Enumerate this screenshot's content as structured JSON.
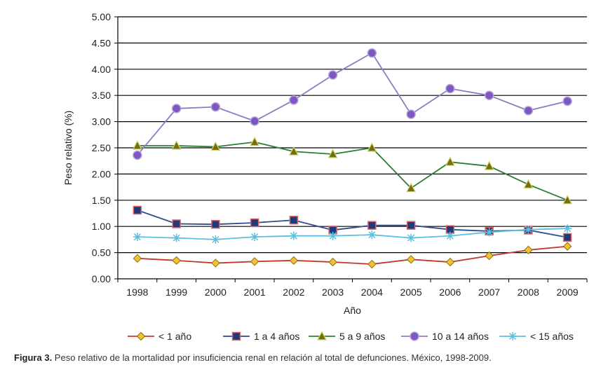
{
  "chart_data": {
    "type": "line",
    "title": "",
    "xlabel": "Año",
    "ylabel": "Peso relativo (%)",
    "ylim": [
      0,
      5
    ],
    "ytick_labels": [
      "0.00",
      "0.50",
      "1.00",
      "1.50",
      "2.00",
      "2.50",
      "3.00",
      "3.50",
      "4.00",
      "4.50",
      "5.00"
    ],
    "categories": [
      "1998",
      "1999",
      "2000",
      "2001",
      "2002",
      "2003",
      "2004",
      "2005",
      "2006",
      "2007",
      "2008",
      "2009"
    ],
    "grid": "horizontal",
    "legend_position": "bottom",
    "series": [
      {
        "name": "< 1 año",
        "color": "#c0392b",
        "marker": "diamond",
        "marker_fill": "#f1c232",
        "marker_stroke": "#8a6d0b",
        "values": [
          0.39,
          0.35,
          0.3,
          0.33,
          0.35,
          0.32,
          0.28,
          0.37,
          0.32,
          0.44,
          0.55,
          0.62
        ]
      },
      {
        "name": "1 a 4 años",
        "color": "#2e4c8f",
        "marker": "square",
        "marker_fill": "#1f3a7a",
        "marker_stroke": "#e06666",
        "values": [
          1.31,
          1.05,
          1.04,
          1.07,
          1.12,
          0.93,
          1.02,
          1.02,
          0.94,
          0.91,
          0.93,
          0.79
        ]
      },
      {
        "name": "5 a 9 años",
        "color": "#2e7d32",
        "marker": "triangle",
        "marker_fill": "#7a6a12",
        "marker_stroke": "#c9d96b",
        "values": [
          2.54,
          2.54,
          2.52,
          2.61,
          2.43,
          2.38,
          2.5,
          1.73,
          2.23,
          2.15,
          1.8,
          1.5
        ]
      },
      {
        "name": "10 a 14 años",
        "color": "#8e7cc3",
        "marker": "circle",
        "marker_fill": "#7e57c2",
        "marker_stroke": "#b4a7d6",
        "values": [
          2.36,
          3.25,
          3.28,
          3.01,
          3.41,
          3.89,
          4.31,
          3.14,
          3.63,
          3.5,
          3.21,
          3.39
        ]
      },
      {
        "name": "< 15 años",
        "color": "#5bc0de",
        "marker": "star",
        "marker_fill": "#5bc0de",
        "marker_stroke": "#5bc0de",
        "values": [
          0.8,
          0.78,
          0.75,
          0.8,
          0.82,
          0.82,
          0.84,
          0.78,
          0.82,
          0.89,
          0.94,
          0.96
        ]
      }
    ]
  },
  "caption": {
    "label": "Figura 3.",
    "text": " Peso relativo de la mortalidad por insuficiencia renal en relación al total de defunciones. México, 1998-2009."
  }
}
